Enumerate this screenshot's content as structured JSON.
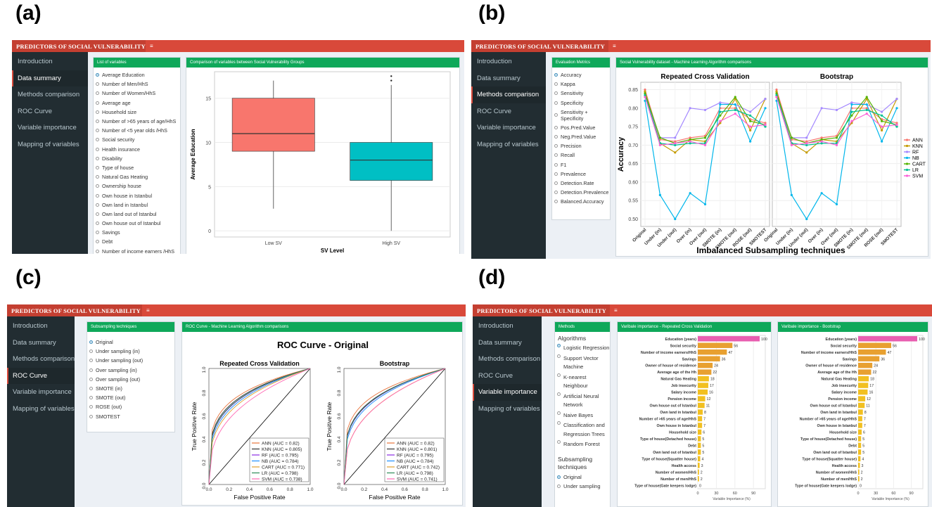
{
  "labels": {
    "a": "(a)",
    "b": "(b)",
    "c": "(c)",
    "d": "(d)"
  },
  "app_title": "PREDICTORS OF SOCIAL VULNERABILITY",
  "sidebar": [
    "Introduction",
    "Data summary",
    "Methods comparison",
    "ROC Curve",
    "Variable importance",
    "Mapping of variables"
  ],
  "panel_a": {
    "list_title": "List of variables",
    "variables": [
      "Average Education",
      "Number of Men/HhS",
      "Number of Women/HhS",
      "Average age",
      "Household size",
      "Number of >65 years of age/HhS",
      "Number of <5 year olds /HhS",
      "Social security",
      "Health insurance",
      "Disability",
      "Type of house",
      "Natural Gas Heating",
      "Ownership house",
      "Own house in Istanbul",
      "Own land in Istanbul",
      "Own land out of Istanbul",
      "Own house out of Istanbul",
      "Savings",
      "Debt",
      "Number of income earners /HhS"
    ],
    "chart_title": "Comparison of variables between Social Vulnerability Groups",
    "chart_data": {
      "type": "box",
      "categories": [
        "Low SV",
        "High SV"
      ],
      "boxes": [
        {
          "whisker_low": 2.5,
          "q1": 9,
          "median": 11,
          "q3": 15,
          "whisker_high": 17,
          "color": "#f8766d"
        },
        {
          "whisker_low": 0,
          "q1": 5.7,
          "median": 8,
          "q3": 10,
          "whisker_high": 16.5,
          "outliers": [
            17,
            17.5
          ],
          "color": "#00bfc4"
        }
      ],
      "xlabel": "SV Level",
      "ylabel": "Average Education",
      "yticks": [
        0,
        5,
        10,
        15
      ],
      "ylim": [
        -0.7,
        18
      ]
    }
  },
  "panel_b": {
    "metrics_title": "Evaluation Metrics",
    "metrics": [
      "Accuracy",
      "Kappa",
      "Sensitivity",
      "Specificity",
      "Sensitivity + Specificity",
      "Pos.Pred.Value",
      "Neg.Pred.Value",
      "Precision",
      "Recall",
      "F1",
      "Prevalence",
      "Detection.Rate",
      "Detection.Prevalence",
      "Balanced.Accuracy"
    ],
    "chart_box_title": "Social Vulnerability dataset - Machine Learning Algorithm comparisons",
    "chart_data": {
      "type": "line",
      "facets": [
        "Repeated Cross Validation",
        "Bootstrap"
      ],
      "categories": [
        "Original",
        "Under (in)",
        "Under (out)",
        "Over (in)",
        "Over (out)",
        "SMOTE (in)",
        "SMOTE (out)",
        "ROSE (out)",
        "SMOTEST"
      ],
      "ylabel": "Accuracy",
      "xlabel": "Imbalanced Subsampling techniques",
      "yticks": [
        0.5,
        0.55,
        0.6,
        0.65,
        0.7,
        0.75,
        0.8,
        0.85
      ],
      "ylim": [
        0.48,
        0.87
      ],
      "series": [
        {
          "name": "ANN",
          "color": "#f8766d",
          "values": [
            0.85,
            0.715,
            0.71,
            0.72,
            0.725,
            0.8,
            0.8,
            0.77,
            0.76
          ]
        },
        {
          "name": "KNN",
          "color": "#c49a00",
          "values": [
            0.845,
            0.705,
            0.68,
            0.715,
            0.71,
            0.76,
            0.825,
            0.74,
            0.825
          ]
        },
        {
          "name": "RF",
          "color": "#a58aff",
          "values": [
            0.83,
            0.72,
            0.72,
            0.8,
            0.795,
            0.815,
            0.81,
            0.79,
            0.825
          ]
        },
        {
          "name": "NB",
          "color": "#00b6eb",
          "values": [
            0.82,
            0.565,
            0.5,
            0.57,
            0.54,
            0.81,
            0.81,
            0.71,
            0.8
          ]
        },
        {
          "name": "CART",
          "color": "#53b400",
          "values": [
            0.84,
            0.72,
            0.705,
            0.715,
            0.72,
            0.78,
            0.83,
            0.765,
            0.755
          ]
        },
        {
          "name": "LR",
          "color": "#00c094",
          "values": [
            0.835,
            0.705,
            0.7,
            0.705,
            0.705,
            0.79,
            0.795,
            0.78,
            0.75
          ]
        },
        {
          "name": "SVM",
          "color": "#fb61d7",
          "values": [
            0.83,
            0.7,
            0.705,
            0.71,
            0.7,
            0.765,
            0.785,
            0.75,
            0.755
          ]
        }
      ]
    }
  },
  "panel_c": {
    "sub_title": "Subsampling techniques",
    "options": [
      "Original",
      "Under sampling (in)",
      "Under sampling (out)",
      "Over sampling (in)",
      "Over sampling (out)",
      "SMOTE (in)",
      "SMOTE (out)",
      "ROSE (out)",
      "SMOTEST"
    ],
    "chart_box_title": "ROC Curve - Machine Learning Algorithm comparisons",
    "chart_data": {
      "type": "line",
      "title": "ROC Curve - Original",
      "facets": [
        "Repeated Cross Validation",
        "Bootstrap"
      ],
      "xlabel": "False Positive Rate",
      "ylabel": "True Positive Rate",
      "ticks": [
        "0.0",
        "0.2",
        "0.4",
        "0.6",
        "0.8",
        "1.0"
      ],
      "legends": [
        [
          "ANN (AUC = 0.82)",
          "KNN (AUC = 0.805)",
          "RF (AUC = 0.795)",
          "NB (AUC = 0.784)",
          "CART (AUC = 0.771)",
          "LR (AUC = 0.798)",
          "SVM (AUC = 0.738)"
        ],
        [
          "ANN (AUC = 0.82)",
          "KNN (AUC = 0.801)",
          "RF (AUC = 0.795)",
          "NB (AUC = 0.784)",
          "CART (AUC = 0.742)",
          "LR (AUC = 0.798)",
          "SVM (AUC = 0.741)"
        ]
      ],
      "colors": [
        "#e8743b",
        "#333333",
        "#8a2be2",
        "#1e90ff",
        "#e0a030",
        "#2e8b57",
        "#ff69b4"
      ],
      "auc": [
        [
          0.82,
          0.805,
          0.795,
          0.784,
          0.771,
          0.798,
          0.738
        ],
        [
          0.82,
          0.801,
          0.795,
          0.784,
          0.742,
          0.798,
          0.741
        ]
      ]
    }
  },
  "panel_d": {
    "methods_title": "Methods",
    "algorithms_title": "Algorithms",
    "algorithms": [
      "Logistic Regression",
      "Support Vector Machine",
      "K-nearest Neighbour",
      "Artificial Neural Network",
      "Naive Bayes",
      "Classification and Regression Trees",
      "Random Forest"
    ],
    "subsampling_title": "Subsampling techniques",
    "subsampling": [
      "Original",
      "Under sampling"
    ],
    "chart_titles": [
      "Varibale importance - Repeated Cross Validation",
      "Varibale importance - Bootstrap"
    ],
    "chart_data": {
      "type": "bar",
      "categories": [
        "Education (years)",
        "Social security",
        "Number of income earners/HhS",
        "Savings",
        "Owner of house of residence",
        "Average age of the Hh",
        "Natural Gas Heating",
        "Job insecurity",
        "Salary income",
        "Pension income",
        "Own house out of Istanbul",
        "Own land in Istanbul",
        "Number of >65 years of age/HhS",
        "Own house in Istanbul",
        "Household size",
        "Type of house(Detached house)",
        "Debt",
        "Own land out of Istanbul",
        "Type of house(Squatter house)",
        "Health access",
        "Number of women/HhS",
        "Number of men/HhS",
        "Type of house(Gate keepers lodge)"
      ],
      "values": [
        100,
        56,
        47,
        36,
        24,
        22,
        18,
        17,
        16,
        12,
        11,
        8,
        7,
        7,
        6,
        5,
        5,
        5,
        4,
        3,
        2,
        2,
        0
      ],
      "xlabel": "Variable Importance (%)",
      "xticks": [
        0,
        30,
        60,
        90
      ],
      "bar_colors": [
        "#e85db0",
        "#e8a030",
        "#f2c020"
      ]
    }
  }
}
